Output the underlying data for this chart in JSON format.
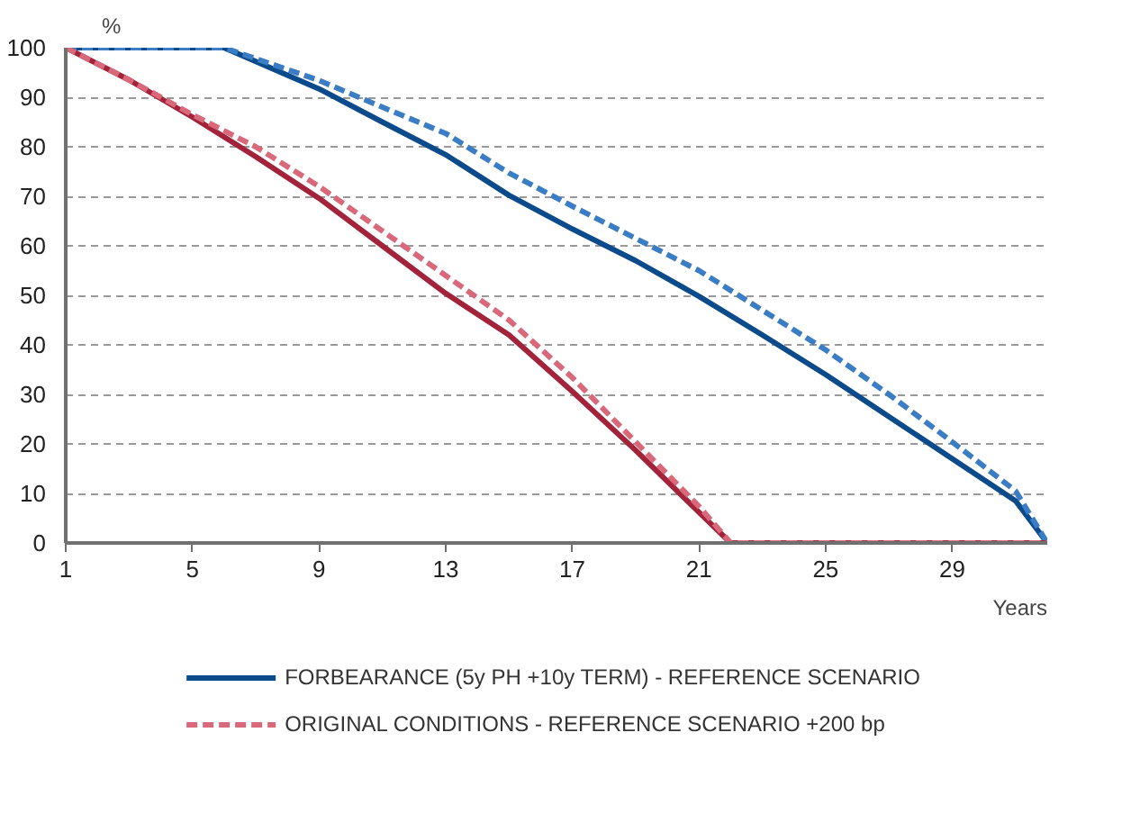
{
  "chart_data": {
    "type": "line",
    "xlabel": "Years",
    "ylabel": "%",
    "xlim": [
      1,
      32
    ],
    "ylim": [
      0,
      100
    ],
    "xticks": [
      1,
      5,
      9,
      13,
      17,
      21,
      25,
      29
    ],
    "yticks": [
      0,
      10,
      20,
      30,
      40,
      50,
      60,
      70,
      80,
      90,
      100
    ],
    "grid": "y",
    "legend": "bottom",
    "marker": "none",
    "series": [
      {
        "name": "FORBEARANCE (5y PH +10y TERM) - REFERENCE SCENARIO",
        "color": "#0b4a8b",
        "line_style": "solid",
        "x": [
          1,
          6,
          9,
          11,
          13,
          15,
          17,
          19,
          21,
          23,
          25,
          27,
          29,
          31,
          32
        ],
        "values": [
          100,
          100,
          91.7,
          85,
          78.4,
          70.2,
          63.4,
          57,
          49.8,
          42,
          34,
          25.5,
          17,
          8.5,
          0
        ]
      },
      {
        "color": "#3b7dc4",
        "line_style": "dashed",
        "x": [
          1,
          6,
          9,
          11,
          13,
          15,
          17,
          19,
          21,
          23,
          25,
          27,
          29,
          31,
          32
        ],
        "values": [
          100,
          100,
          93.4,
          88,
          82.7,
          74.7,
          68,
          61.5,
          55,
          47,
          39,
          30,
          20.4,
          10.5,
          0
        ]
      },
      {
        "color": "#a3233a",
        "line_style": "solid",
        "x": [
          1,
          3,
          5,
          7,
          9,
          11,
          13,
          15,
          17,
          19,
          21,
          22,
          32
        ],
        "values": [
          100,
          93.5,
          86,
          78,
          69.6,
          60,
          50.4,
          42,
          30.6,
          18.7,
          6.2,
          0,
          0
        ]
      },
      {
        "name": "ORIGINAL CONDITIONS - REFERENCE SCENARIO +200 bp",
        "color": "#d9687a",
        "line_style": "dashed",
        "x": [
          1,
          3,
          5,
          7,
          9,
          11,
          13,
          15,
          17,
          19,
          21,
          22,
          32
        ],
        "values": [
          100,
          93.5,
          86.5,
          80,
          72,
          63,
          54,
          45,
          33.4,
          20.4,
          7.4,
          0,
          0
        ]
      }
    ]
  }
}
